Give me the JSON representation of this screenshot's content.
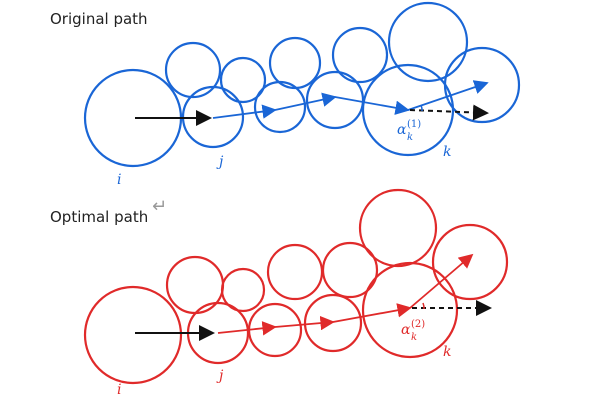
{
  "panels": [
    {
      "title": "Original path",
      "color": "#1a66d6",
      "labels": {
        "i": "i",
        "j": "j",
        "k": "k",
        "alpha": "α",
        "alpha_sub": "k",
        "alpha_sup": "(1)"
      }
    },
    {
      "title": "Optimal path",
      "color": "#e02a2a",
      "labels": {
        "i": "i",
        "j": "j",
        "k": "k",
        "alpha": "α",
        "alpha_sub": "k",
        "alpha_sup": "(2)"
      }
    }
  ],
  "return_symbol": "↵",
  "colors": {
    "arrow": "#111111",
    "mark": "#999999"
  }
}
